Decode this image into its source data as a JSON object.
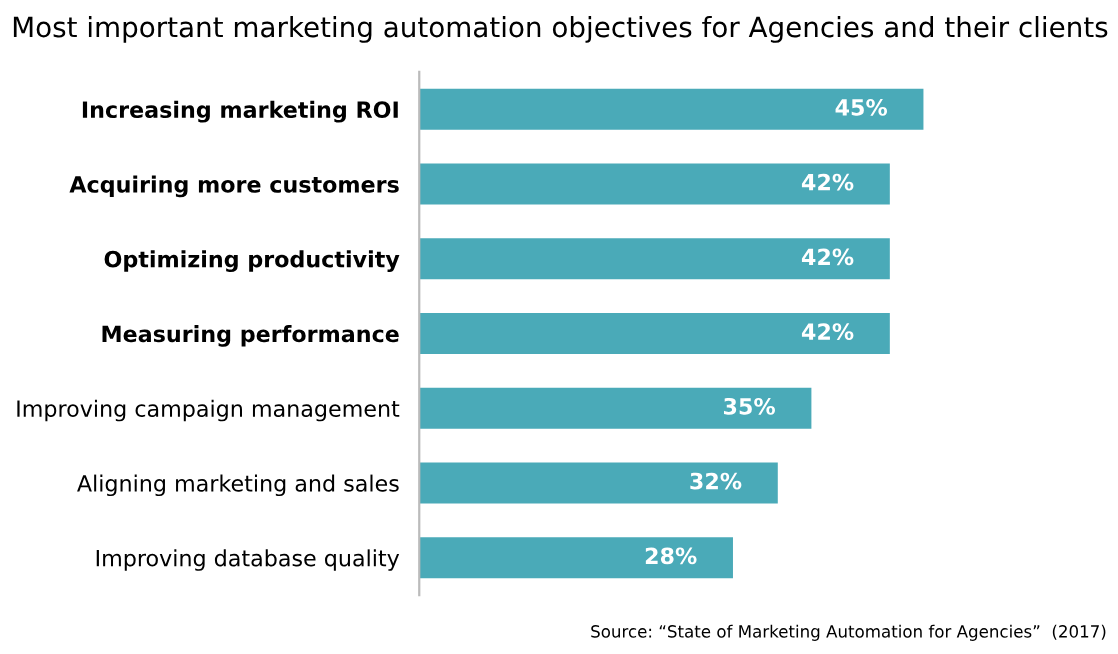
{
  "chart_data": {
    "type": "bar",
    "orientation": "horizontal",
    "title": "Most important marketing automation objectives for Agencies and their clients",
    "categories": [
      "Increasing marketing ROI",
      "Acquiring more customers",
      "Optimizing productivity",
      "Measuring performance",
      "Improving campaign management",
      "Aligning marketing and sales",
      "Improving database quality"
    ],
    "values": [
      45,
      42,
      42,
      42,
      35,
      32,
      28
    ],
    "value_labels": [
      "45%",
      "42%",
      "42%",
      "42%",
      "35%",
      "32%",
      "28%"
    ],
    "color": "#4aaab8",
    "tick_labels": "y",
    "grid": false,
    "annotations": [
      "Source: “State of Marketing Automation for Agencies”  (2017)"
    ]
  }
}
